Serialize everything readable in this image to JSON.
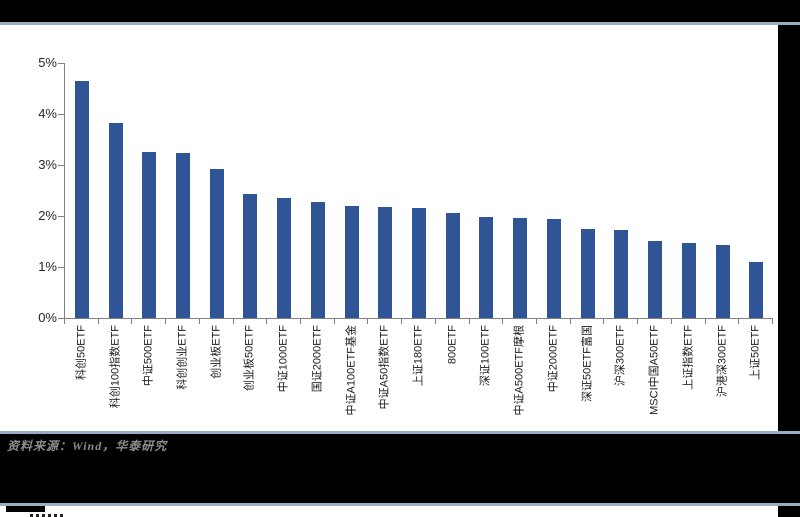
{
  "page": {
    "source_note": "资料来源：Wind，华泰研究"
  },
  "colors": {
    "bar": "#2f5597",
    "separator_line": "#97adc6",
    "frame_band": "#000000",
    "axis_line": "#808080",
    "source_text": "#8c8c8c"
  },
  "chart_data": {
    "type": "bar",
    "title": "",
    "xlabel": "",
    "ylabel": "",
    "ylim": [
      0,
      5
    ],
    "yticks": [
      "0%",
      "1%",
      "2%",
      "3%",
      "4%",
      "5%"
    ],
    "grid": false,
    "legend_position": "none",
    "bar_color": "#2f5597",
    "value_unit": "%",
    "categories": [
      "科创50ETF",
      "科创100指数ETF",
      "中证500ETF",
      "科创创业ETF",
      "创业板ETF",
      "创业板50ETF",
      "中证1000ETF",
      "国证2000ETF",
      "中证A100ETF基金",
      "中证A50指数ETF",
      "上证180ETF",
      "800ETF",
      "深证100ETF",
      "中证A500ETF摩根",
      "中证2000ETF",
      "深证50ETF富国",
      "沪深300ETF",
      "MSCI中国A50ETF",
      "上证指数ETF",
      "沪港深300ETF",
      "上证50ETF"
    ],
    "values": [
      4.65,
      3.82,
      3.25,
      3.23,
      2.93,
      2.44,
      2.35,
      2.27,
      2.19,
      2.17,
      2.15,
      2.06,
      1.98,
      1.96,
      1.94,
      1.74,
      1.72,
      1.51,
      1.47,
      1.43,
      1.1
    ]
  }
}
